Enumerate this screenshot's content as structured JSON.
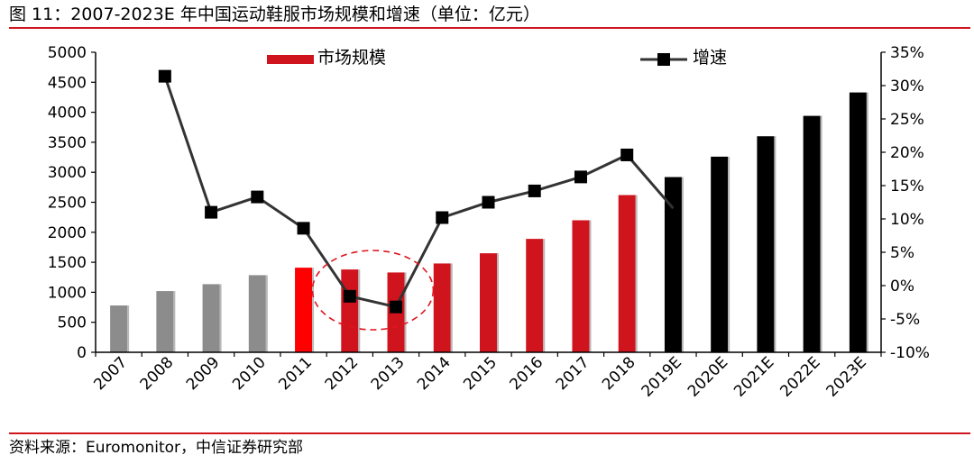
{
  "figure_title": "图 11：2007-2023E 年中国运动鞋服市场规模和增速（单位：亿元）",
  "source_note": "资料来源：Euromonitor，中信证券研究部",
  "chart_data": {
    "type": "bar",
    "categories": [
      "2007",
      "2008",
      "2009",
      "2010",
      "2011",
      "2012",
      "2013",
      "2014",
      "2015",
      "2016",
      "2017",
      "2018",
      "2019E",
      "2020E",
      "2021E",
      "2022E",
      "2023E"
    ],
    "series": [
      {
        "name": "市场规模",
        "type": "bar",
        "axis": "left",
        "values": [
          780,
          1020,
          1135,
          1285,
          1410,
          1380,
          1330,
          1480,
          1650,
          1890,
          2200,
          2620,
          2920,
          3260,
          3600,
          3940,
          4330
        ]
      },
      {
        "name": "增速",
        "type": "line",
        "axis": "right",
        "values": [
          null,
          31.4,
          11.0,
          13.3,
          8.6,
          -1.6,
          -3.2,
          10.2,
          12.5,
          14.2,
          16.3,
          19.6,
          11.6,
          null,
          null,
          null,
          null
        ]
      }
    ],
    "bar_colors": [
      "#8c8c8c",
      "#8c8c8c",
      "#8c8c8c",
      "#8c8c8c",
      "#ff0000",
      "#d0141e",
      "#d0141e",
      "#d0141e",
      "#d0141e",
      "#d0141e",
      "#d0141e",
      "#d0141e",
      "#000000",
      "#000000",
      "#000000",
      "#000000",
      "#000000"
    ],
    "line_color": "#333333",
    "marker_color": "#000000",
    "y_left": {
      "range": [
        0,
        5000
      ],
      "ticks": [
        0,
        500,
        1000,
        1500,
        2000,
        2500,
        3000,
        3500,
        4000,
        4500,
        5000
      ],
      "tick_labels": [
        "0",
        "500",
        "1000",
        "1500",
        "2000",
        "2500",
        "3000",
        "3500",
        "4000",
        "4500",
        "5000"
      ]
    },
    "y_right": {
      "range": [
        -10,
        35
      ],
      "ticks": [
        -10,
        -5,
        0,
        5,
        10,
        15,
        20,
        25,
        30,
        35
      ],
      "tick_labels": [
        "-10%",
        "-5%",
        "0%",
        "5%",
        "10%",
        "15%",
        "20%",
        "25%",
        "30%",
        "35%"
      ]
    },
    "grid": false,
    "legend_position": "top",
    "annotation": {
      "shape": "dashed-ellipse",
      "color": "#e0141e",
      "around_categories": [
        "2012",
        "2013"
      ]
    }
  }
}
